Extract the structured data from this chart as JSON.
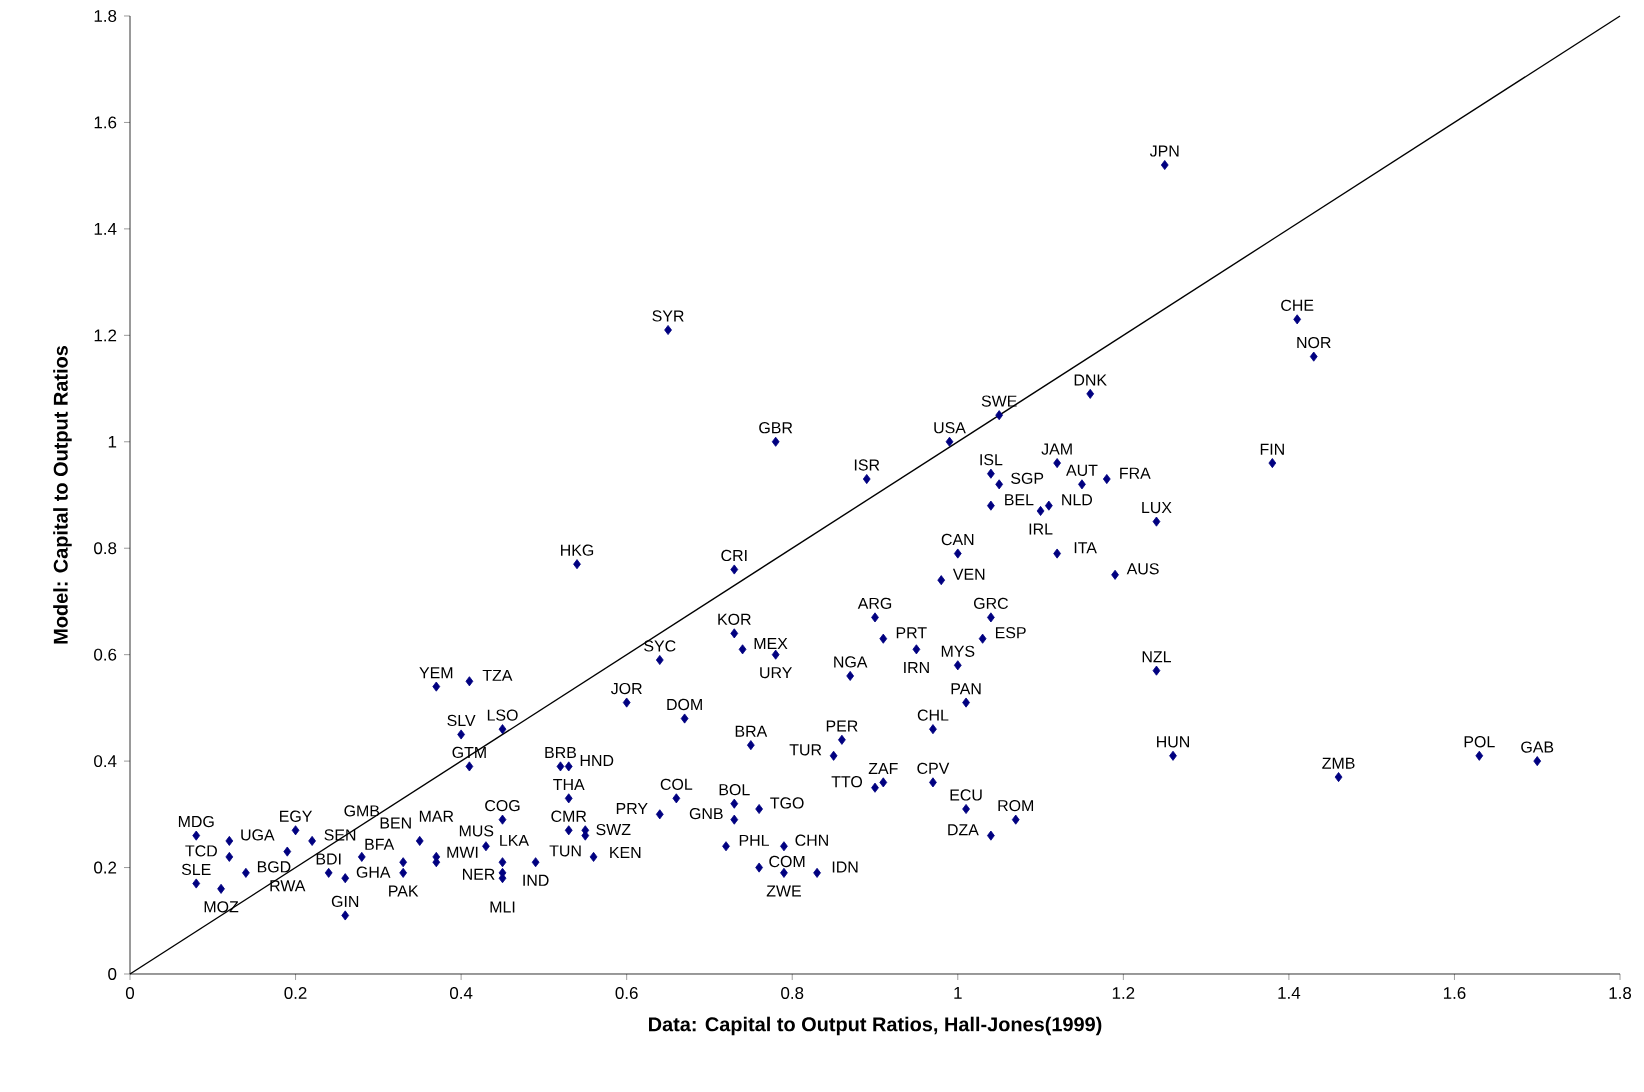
{
  "chart_data": {
    "type": "scatter",
    "xlabel": "Data: Capital to Output Ratios, Hall-Jones(1999)",
    "ylabel": "Model: Capital to Output Ratios",
    "xlim": [
      0,
      1.8
    ],
    "ylim": [
      0,
      1.8
    ],
    "xticks": [
      0,
      0.2,
      0.4,
      0.6,
      0.8,
      1,
      1.2,
      1.4,
      1.6,
      1.8
    ],
    "yticks": [
      0,
      0.2,
      0.4,
      0.6,
      0.8,
      1,
      1.2,
      1.4,
      1.6,
      1.8
    ],
    "grid": false,
    "marker": "diamond",
    "series": [
      {
        "type": "scatter",
        "color": "#000080",
        "x": [
          1.25,
          1.41,
          1.43,
          1.16,
          1.05,
          1.38,
          1.12,
          1.15,
          1.18,
          1.04,
          1.05,
          1.04,
          1.1,
          1.11,
          1.24,
          1.12,
          1.19,
          1.24,
          1.26,
          1.46,
          1.63,
          1.7,
          0.65,
          0.78,
          0.89,
          0.99,
          0.54,
          0.73,
          1.0,
          0.98,
          0.9,
          0.91,
          0.95,
          1.04,
          1.03,
          1.0,
          0.87,
          0.73,
          0.74,
          0.78,
          0.64,
          0.6,
          0.67,
          0.75,
          0.86,
          0.85,
          1.01,
          0.97,
          0.9,
          0.91,
          0.97,
          1.01,
          1.07,
          1.04,
          0.66,
          0.64,
          0.73,
          0.76,
          0.73,
          0.72,
          0.79,
          0.76,
          0.79,
          0.83,
          0.37,
          0.41,
          0.4,
          0.45,
          0.41,
          0.52,
          0.53,
          0.53,
          0.45,
          0.53,
          0.55,
          0.55,
          0.56,
          0.49,
          0.43,
          0.45,
          0.45,
          0.45,
          0.33,
          0.33,
          0.37,
          0.37,
          0.35,
          0.08,
          0.12,
          0.12,
          0.14,
          0.08,
          0.11,
          0.19,
          0.2,
          0.22,
          0.28,
          0.24,
          0.26,
          0.26
        ],
        "values": [
          1.52,
          1.23,
          1.16,
          1.09,
          1.05,
          0.96,
          0.96,
          0.92,
          0.93,
          0.94,
          0.92,
          0.88,
          0.87,
          0.88,
          0.85,
          0.79,
          0.75,
          0.57,
          0.41,
          0.37,
          0.41,
          0.4,
          1.21,
          1.0,
          0.93,
          1.0,
          0.77,
          0.76,
          0.79,
          0.74,
          0.67,
          0.63,
          0.61,
          0.67,
          0.63,
          0.58,
          0.56,
          0.64,
          0.61,
          0.6,
          0.59,
          0.51,
          0.48,
          0.43,
          0.44,
          0.41,
          0.51,
          0.46,
          0.35,
          0.36,
          0.36,
          0.31,
          0.29,
          0.26,
          0.33,
          0.3,
          0.32,
          0.31,
          0.29,
          0.24,
          0.24,
          0.2,
          0.19,
          0.19,
          0.54,
          0.55,
          0.45,
          0.46,
          0.39,
          0.39,
          0.39,
          0.33,
          0.29,
          0.27,
          0.26,
          0.27,
          0.22,
          0.21,
          0.24,
          0.21,
          0.19,
          0.18,
          0.21,
          0.19,
          0.21,
          0.22,
          0.25,
          0.26,
          0.25,
          0.22,
          0.19,
          0.17,
          0.16,
          0.23,
          0.27,
          0.25,
          0.22,
          0.19,
          0.18,
          0.11
        ]
      },
      {
        "type": "line",
        "color": "#000000",
        "marker": "none",
        "x": [
          0,
          1.8
        ],
        "values": [
          0,
          1.8
        ]
      }
    ],
    "annotations": [
      {
        "text": "JPN",
        "x": 1.25,
        "y": 1.52
      },
      {
        "text": "CHE",
        "x": 1.41,
        "y": 1.23
      },
      {
        "text": "NOR",
        "x": 1.43,
        "y": 1.16
      },
      {
        "text": "DNK",
        "x": 1.16,
        "y": 1.09
      },
      {
        "text": "SWE",
        "x": 1.05,
        "y": 1.05
      },
      {
        "text": "FIN",
        "x": 1.38,
        "y": 0.96
      },
      {
        "text": "JAM",
        "x": 1.12,
        "y": 0.96
      },
      {
        "text": "AUT",
        "x": 1.15,
        "y": 0.92
      },
      {
        "text": "FRA",
        "x": 1.18,
        "y": 0.93
      },
      {
        "text": "ISL",
        "x": 1.04,
        "y": 0.94
      },
      {
        "text": "SGP",
        "x": 1.05,
        "y": 0.92
      },
      {
        "text": "BEL",
        "x": 1.04,
        "y": 0.88
      },
      {
        "text": "IRL",
        "x": 1.1,
        "y": 0.87
      },
      {
        "text": "NLD",
        "x": 1.11,
        "y": 0.88
      },
      {
        "text": "LUX",
        "x": 1.24,
        "y": 0.85
      },
      {
        "text": "ITA",
        "x": 1.12,
        "y": 0.79
      },
      {
        "text": "AUS",
        "x": 1.19,
        "y": 0.75
      },
      {
        "text": "NZL",
        "x": 1.24,
        "y": 0.57
      },
      {
        "text": "HUN",
        "x": 1.26,
        "y": 0.41
      },
      {
        "text": "ZMB",
        "x": 1.46,
        "y": 0.37
      },
      {
        "text": "POL",
        "x": 1.63,
        "y": 0.41
      },
      {
        "text": "GAB",
        "x": 1.7,
        "y": 0.4
      },
      {
        "text": "SYR",
        "x": 0.65,
        "y": 1.21
      },
      {
        "text": "GBR",
        "x": 0.78,
        "y": 1.0
      },
      {
        "text": "ISR",
        "x": 0.89,
        "y": 0.93
      },
      {
        "text": "USA",
        "x": 0.99,
        "y": 1.0
      },
      {
        "text": "HKG",
        "x": 0.54,
        "y": 0.77
      },
      {
        "text": "CRI",
        "x": 0.73,
        "y": 0.76
      },
      {
        "text": "CAN",
        "x": 1.0,
        "y": 0.79
      },
      {
        "text": "VEN",
        "x": 0.98,
        "y": 0.74
      },
      {
        "text": "ARG",
        "x": 0.9,
        "y": 0.67
      },
      {
        "text": "PRT",
        "x": 0.91,
        "y": 0.63
      },
      {
        "text": "IRN",
        "x": 0.95,
        "y": 0.61
      },
      {
        "text": "GRC",
        "x": 1.04,
        "y": 0.67
      },
      {
        "text": "ESP",
        "x": 1.03,
        "y": 0.63
      },
      {
        "text": "MYS",
        "x": 1.0,
        "y": 0.58
      },
      {
        "text": "NGA",
        "x": 0.87,
        "y": 0.56
      },
      {
        "text": "KOR",
        "x": 0.73,
        "y": 0.64
      },
      {
        "text": "MEX",
        "x": 0.74,
        "y": 0.61
      },
      {
        "text": "URY",
        "x": 0.78,
        "y": 0.6
      },
      {
        "text": "SYC",
        "x": 0.64,
        "y": 0.59
      },
      {
        "text": "JOR",
        "x": 0.6,
        "y": 0.51
      },
      {
        "text": "DOM",
        "x": 0.67,
        "y": 0.48
      },
      {
        "text": "BRA",
        "x": 0.75,
        "y": 0.43
      },
      {
        "text": "PER",
        "x": 0.86,
        "y": 0.44
      },
      {
        "text": "TUR",
        "x": 0.85,
        "y": 0.41
      },
      {
        "text": "PAN",
        "x": 1.01,
        "y": 0.51
      },
      {
        "text": "CHL",
        "x": 0.97,
        "y": 0.46
      },
      {
        "text": "TTO",
        "x": 0.9,
        "y": 0.35
      },
      {
        "text": "ZAF",
        "x": 0.91,
        "y": 0.36
      },
      {
        "text": "CPV",
        "x": 0.97,
        "y": 0.36
      },
      {
        "text": "ECU",
        "x": 1.01,
        "y": 0.31
      },
      {
        "text": "ROM",
        "x": 1.07,
        "y": 0.29
      },
      {
        "text": "DZA",
        "x": 1.04,
        "y": 0.26
      },
      {
        "text": "COL",
        "x": 0.66,
        "y": 0.33
      },
      {
        "text": "PRY",
        "x": 0.64,
        "y": 0.3
      },
      {
        "text": "BOL",
        "x": 0.73,
        "y": 0.32
      },
      {
        "text": "TGO",
        "x": 0.76,
        "y": 0.31
      },
      {
        "text": "GNB",
        "x": 0.73,
        "y": 0.29
      },
      {
        "text": "PHL",
        "x": 0.72,
        "y": 0.24
      },
      {
        "text": "CHN",
        "x": 0.79,
        "y": 0.24
      },
      {
        "text": "COM",
        "x": 0.76,
        "y": 0.2
      },
      {
        "text": "ZWE",
        "x": 0.79,
        "y": 0.19
      },
      {
        "text": "IDN",
        "x": 0.83,
        "y": 0.19
      },
      {
        "text": "YEM",
        "x": 0.37,
        "y": 0.54
      },
      {
        "text": "TZA",
        "x": 0.41,
        "y": 0.55
      },
      {
        "text": "SLV",
        "x": 0.4,
        "y": 0.45
      },
      {
        "text": "LSO",
        "x": 0.45,
        "y": 0.46
      },
      {
        "text": "GTM",
        "x": 0.41,
        "y": 0.39
      },
      {
        "text": "BRB",
        "x": 0.52,
        "y": 0.39
      },
      {
        "text": "HND",
        "x": 0.53,
        "y": 0.39
      },
      {
        "text": "THA",
        "x": 0.53,
        "y": 0.33
      },
      {
        "text": "COG",
        "x": 0.45,
        "y": 0.29
      },
      {
        "text": "CMR",
        "x": 0.53,
        "y": 0.27
      },
      {
        "text": "SWZ",
        "x": 0.55,
        "y": 0.26
      },
      {
        "text": "KEN",
        "x": 0.55,
        "y": 0.27
      },
      {
        "text": "TUN",
        "x": 0.56,
        "y": 0.22
      },
      {
        "text": "IND",
        "x": 0.49,
        "y": 0.21
      },
      {
        "text": "LKA",
        "x": 0.43,
        "y": 0.24
      },
      {
        "text": "NER",
        "x": 0.45,
        "y": 0.21
      },
      {
        "text": "MLI",
        "x": 0.45,
        "y": 0.19
      },
      {
        "text": "MWI",
        "x": 0.45,
        "y": 0.18
      },
      {
        "text": "BFA",
        "x": 0.33,
        "y": 0.21
      },
      {
        "text": "PAK",
        "x": 0.33,
        "y": 0.19
      },
      {
        "text": "MAR",
        "x": 0.37,
        "y": 0.21
      },
      {
        "text": "MUS",
        "x": 0.37,
        "y": 0.22
      },
      {
        "text": "BEN",
        "x": 0.35,
        "y": 0.25
      },
      {
        "text": "MDG",
        "x": 0.08,
        "y": 0.26
      },
      {
        "text": "UGA",
        "x": 0.12,
        "y": 0.25
      },
      {
        "text": "TCD",
        "x": 0.12,
        "y": 0.22
      },
      {
        "text": "BGD",
        "x": 0.14,
        "y": 0.19
      },
      {
        "text": "SLE",
        "x": 0.08,
        "y": 0.17
      },
      {
        "text": "MOZ",
        "x": 0.11,
        "y": 0.16
      },
      {
        "text": "RWA",
        "x": 0.19,
        "y": 0.23
      },
      {
        "text": "EGY",
        "x": 0.2,
        "y": 0.27
      },
      {
        "text": "SEN",
        "x": 0.22,
        "y": 0.25
      },
      {
        "text": "GMB",
        "x": 0.28,
        "y": 0.22
      },
      {
        "text": "BDI",
        "x": 0.24,
        "y": 0.19
      },
      {
        "text": "GHA",
        "x": 0.26,
        "y": 0.18
      },
      {
        "text": "GIN",
        "x": 0.26,
        "y": 0.11
      }
    ]
  }
}
